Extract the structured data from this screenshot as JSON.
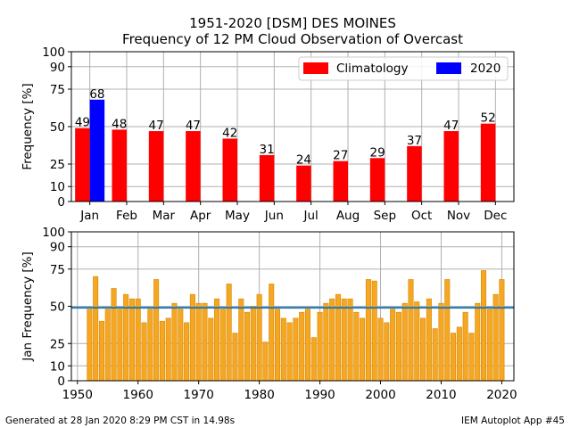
{
  "title_line1": "1951-2020 [DSM] DES MOINES",
  "title_line2": "Frequency of 12 PM Cloud Observation of Overcast",
  "footer_left": "Generated at 28 Jan 2020 8:29 PM CST in 14.98s",
  "footer_right": "IEM Autoplot App #45",
  "colors": {
    "climatology": "#ff0000",
    "current_year": "#0000ff",
    "yearly_bar_fill": "#f5a623",
    "yearly_bar_edge": "#d88a00",
    "average_line": "#1f77b4"
  },
  "chart_data": [
    {
      "type": "bar",
      "ylabel": "Frequency [%]",
      "ylim": [
        0,
        100
      ],
      "yticks": [
        0,
        10,
        25,
        50,
        75,
        90,
        100
      ],
      "grid": true,
      "legend_position": "top-right",
      "categories": [
        "Jan",
        "Feb",
        "Mar",
        "Apr",
        "May",
        "Jun",
        "Jul",
        "Aug",
        "Sep",
        "Oct",
        "Nov",
        "Dec"
      ],
      "series": [
        {
          "name": "Climatology",
          "values": [
            49,
            48,
            47,
            47,
            42,
            31,
            24,
            27,
            29,
            37,
            47,
            52
          ]
        },
        {
          "name": "2020",
          "values": [
            68,
            null,
            null,
            null,
            null,
            null,
            null,
            null,
            null,
            null,
            null,
            null
          ]
        }
      ]
    },
    {
      "type": "bar",
      "ylabel": "Jan Frequency [%]",
      "ylim": [
        0,
        100
      ],
      "xlim": [
        1949,
        2022
      ],
      "yticks": [
        0,
        10,
        25,
        50,
        75,
        90,
        100
      ],
      "xticks": [
        1950,
        1960,
        1970,
        1980,
        1990,
        2000,
        2010,
        2020
      ],
      "grid": true,
      "average": 49,
      "x": [
        1951,
        1952,
        1953,
        1954,
        1955,
        1956,
        1957,
        1958,
        1959,
        1960,
        1961,
        1962,
        1963,
        1964,
        1965,
        1966,
        1967,
        1968,
        1969,
        1970,
        1971,
        1972,
        1973,
        1974,
        1975,
        1976,
        1977,
        1978,
        1979,
        1980,
        1981,
        1982,
        1983,
        1984,
        1985,
        1986,
        1987,
        1988,
        1989,
        1990,
        1991,
        1992,
        1993,
        1994,
        1995,
        1996,
        1997,
        1998,
        1999,
        2000,
        2001,
        2002,
        2003,
        2004,
        2005,
        2006,
        2007,
        2008,
        2009,
        2010,
        2011,
        2012,
        2013,
        2014,
        2015,
        2016,
        2017,
        2018,
        2019,
        2020
      ],
      "values": [
        0,
        48,
        70,
        40,
        48,
        62,
        48,
        58,
        55,
        55,
        39,
        48,
        68,
        40,
        42,
        52,
        48,
        39,
        58,
        52,
        52,
        42,
        55,
        48,
        65,
        32,
        55,
        46,
        50,
        58,
        26,
        65,
        48,
        42,
        39,
        42,
        46,
        48,
        29,
        46,
        52,
        55,
        58,
        55,
        55,
        46,
        42,
        68,
        67,
        42,
        39,
        48,
        46,
        52,
        68,
        53,
        42,
        55,
        35,
        52,
        68,
        32,
        36,
        46,
        32,
        52,
        74,
        48,
        58,
        68
      ]
    }
  ]
}
